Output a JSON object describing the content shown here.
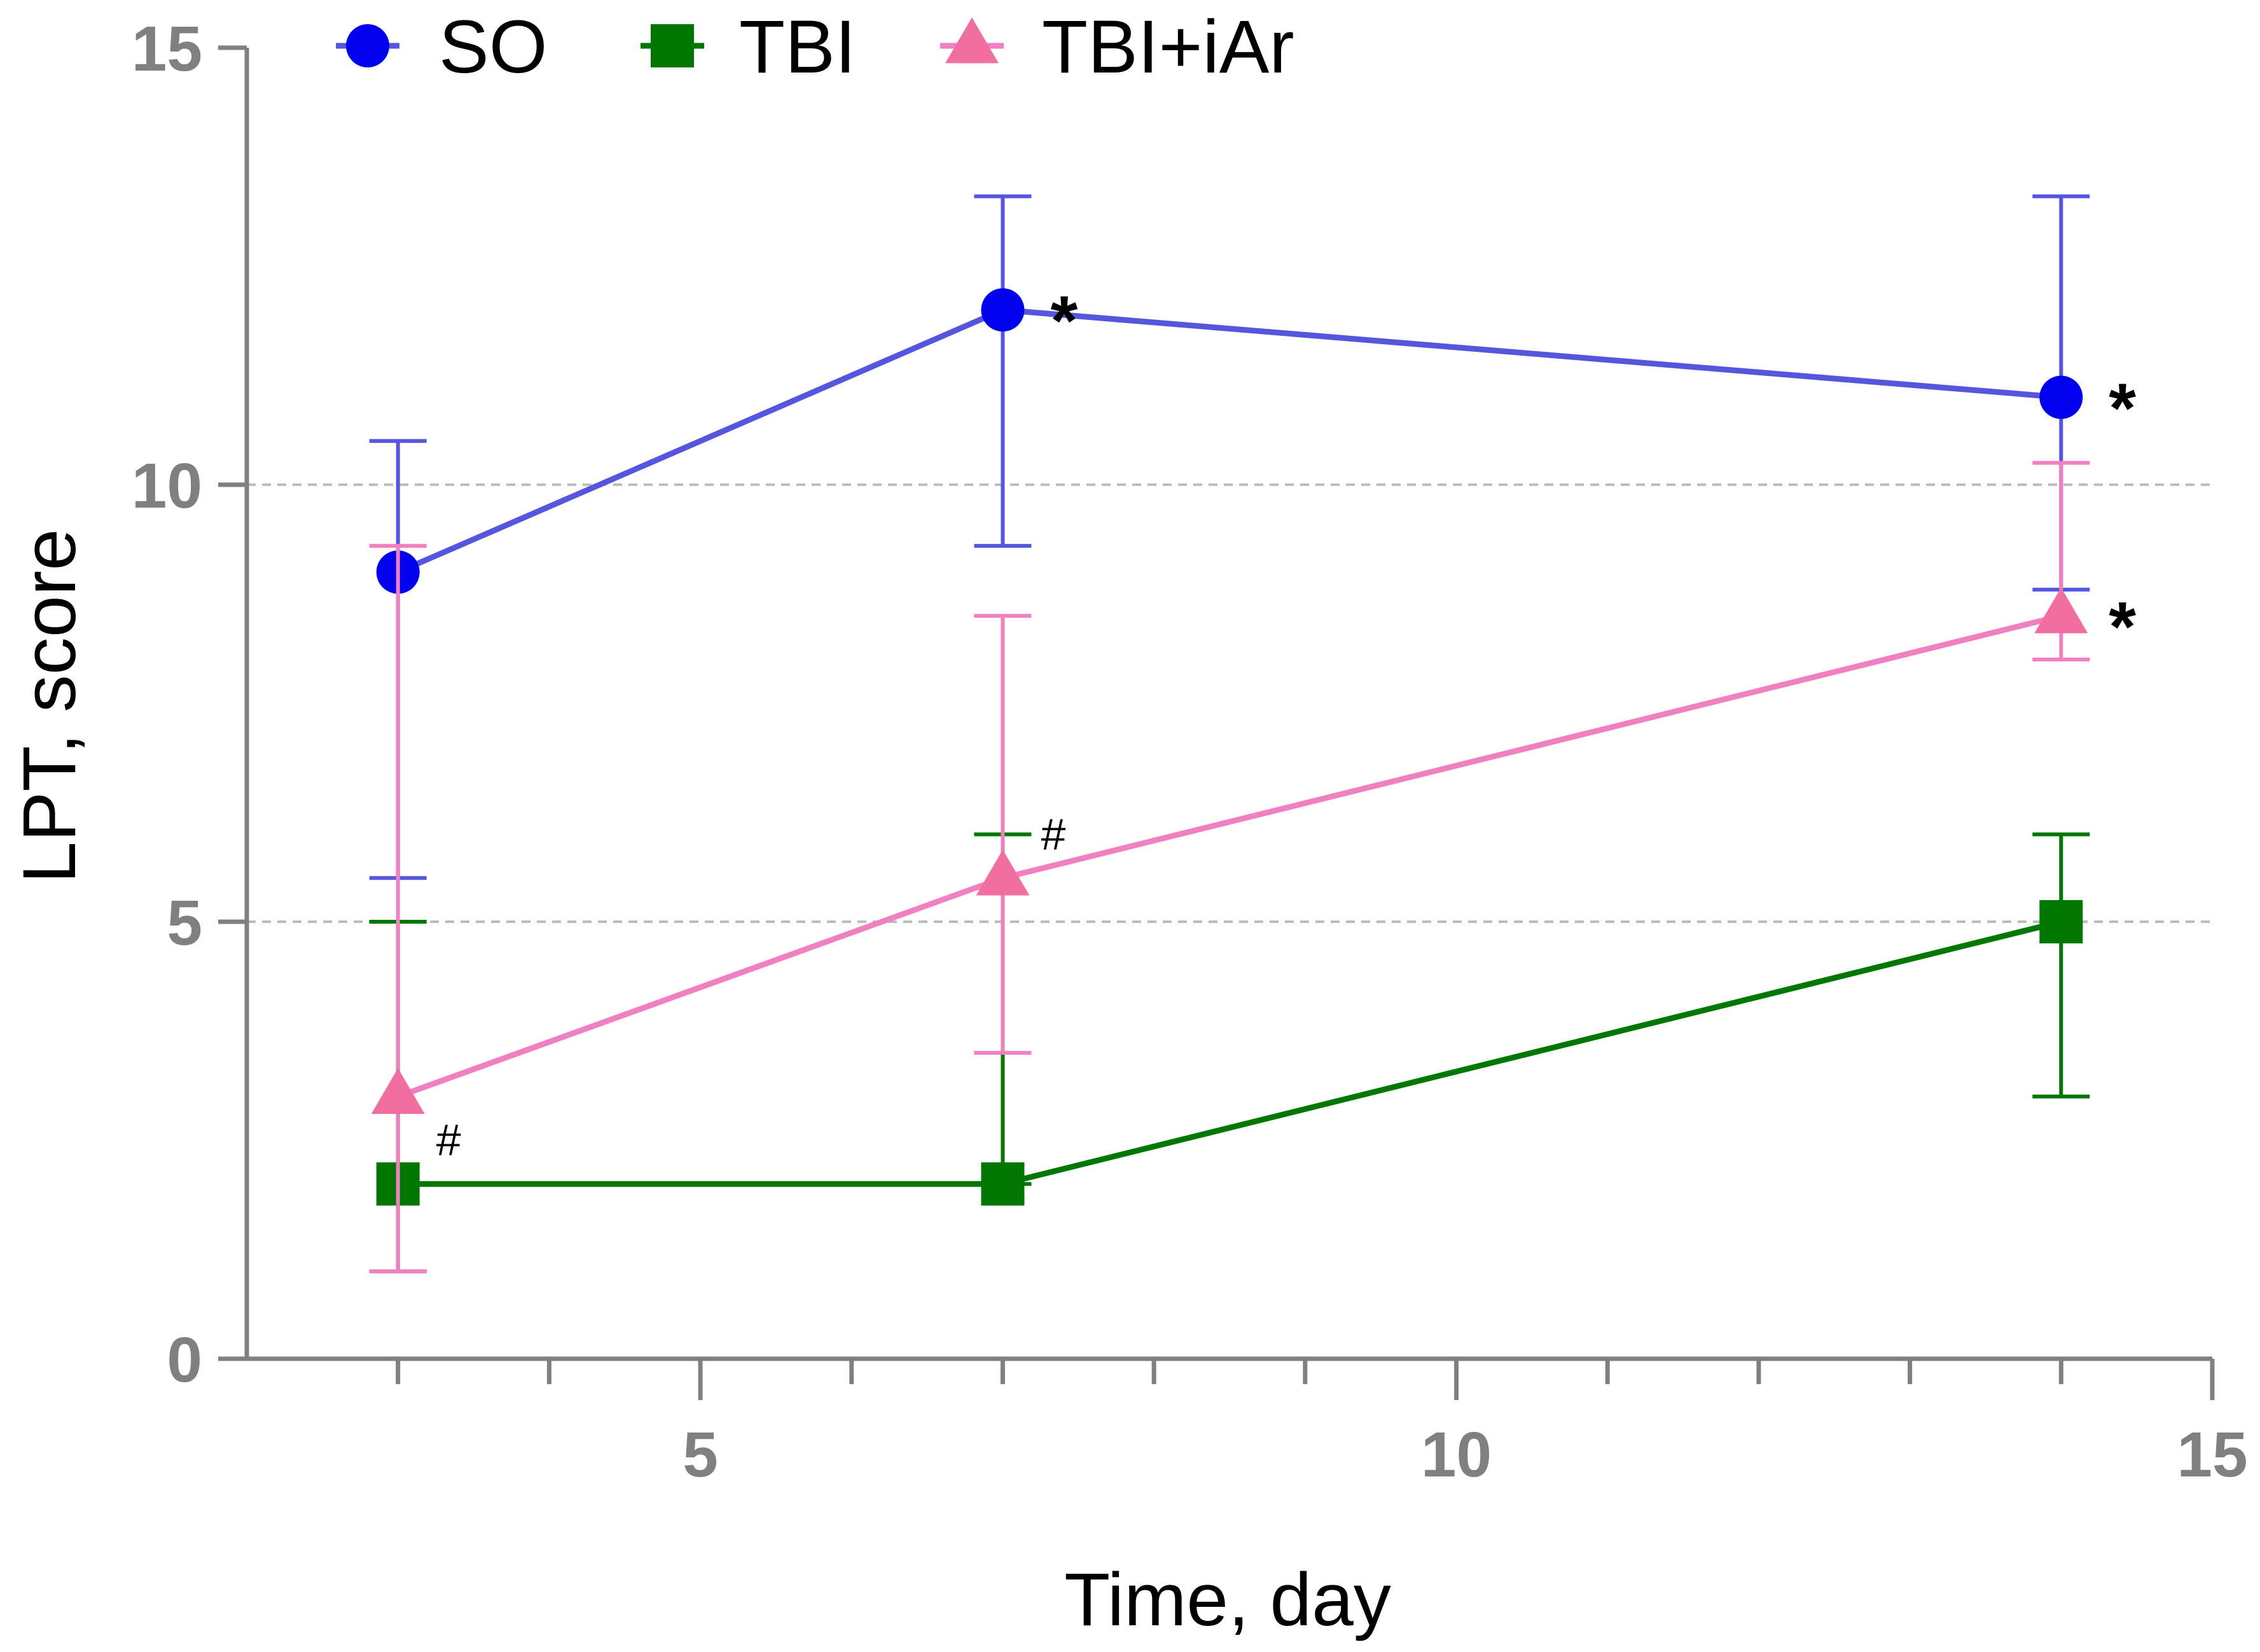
{
  "chart_data": {
    "type": "line",
    "title": "",
    "xlabel": "Time, day",
    "ylabel": "LPT, score",
    "xlim": [
      2,
      15
    ],
    "ylim": [
      0,
      15
    ],
    "x_ticks": [
      5,
      10,
      15
    ],
    "x_minor_step": 1,
    "y_ticks": [
      0,
      5,
      10,
      15
    ],
    "y_gridlines": [
      5,
      10
    ],
    "legend_position": "top",
    "series": [
      {
        "name": "SO",
        "marker": "circle",
        "color": "#0000ee",
        "line_color": "#5555dd",
        "x": [
          3,
          7,
          14
        ],
        "y": [
          9,
          12,
          11
        ],
        "err_low": [
          5.5,
          9.3,
          8.8
        ],
        "err_high": [
          10.5,
          13.3,
          13.3
        ]
      },
      {
        "name": "TBI",
        "marker": "square",
        "color": "#007700",
        "line_color": "#007700",
        "x": [
          3,
          7,
          14
        ],
        "y": [
          2,
          2,
          5
        ],
        "err_low": [
          1,
          2,
          3
        ],
        "err_high": [
          5,
          6,
          6
        ]
      },
      {
        "name": "TBI+iAr",
        "marker": "triangle",
        "color": "#f06fa0",
        "line_color": "#f080c0",
        "x": [
          3,
          7,
          14
        ],
        "y": [
          3,
          5.5,
          8.5
        ],
        "err_low": [
          1,
          3.5,
          8
        ],
        "err_high": [
          9.3,
          8.5,
          10.25
        ]
      }
    ],
    "annotations": [
      {
        "text": "*",
        "x": 7,
        "y": 12,
        "kind": "star"
      },
      {
        "text": "*",
        "x": 14,
        "y": 11,
        "kind": "star"
      },
      {
        "text": "*",
        "x": 14,
        "y": 8.5,
        "kind": "star"
      },
      {
        "text": "#",
        "x": 7,
        "y": 5.5,
        "kind": "hash"
      },
      {
        "text": "#",
        "x": 3,
        "y": 2,
        "kind": "hash"
      }
    ]
  }
}
